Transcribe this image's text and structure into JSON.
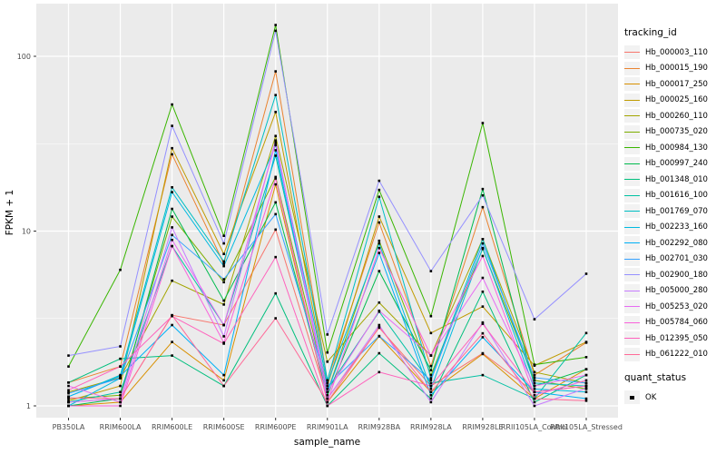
{
  "chart_data": {
    "type": "line",
    "title": "",
    "xlabel": "sample_name",
    "ylabel": "FPKM + 1",
    "y_scale": "log10",
    "y_ticks": [
      1,
      10,
      100
    ],
    "ylim": [
      1,
      160
    ],
    "grid": true,
    "legend_position": "right",
    "legend_title": "tracking_id",
    "legend2_title": "quant_status",
    "legend2_items": [
      {
        "label": "OK"
      }
    ],
    "point_shape": "square",
    "point_color": "#000000",
    "panel_bg": "#EBEBEB",
    "grid_color": "#FFFFFF",
    "axis_text_color": "#4D4D4D",
    "categories": [
      "PB350LA",
      "RRIM600LA",
      "RRIM600LE",
      "RRIM600SE",
      "RRIM600PE",
      "RRIM901LA",
      "RRIM928BA",
      "RRIM928LA",
      "RRIM928LE",
      "RRII105LA_Control",
      "RRII105LA_Stressed"
    ],
    "series": [
      {
        "name": "Hb_000003_110",
        "color": "#F8766D",
        "values": [
          1.05,
          1.1,
          3.3,
          2.9,
          10.2,
          1.1,
          2.8,
          1.3,
          2.0,
          1.2,
          1.3
        ]
      },
      {
        "name": "Hb_000015_190",
        "color": "#EA8331",
        "values": [
          1.36,
          1.68,
          27.5,
          6.5,
          82.0,
          1.4,
          11.2,
          1.69,
          13.7,
          1.5,
          2.3
        ]
      },
      {
        "name": "Hb_000017_250",
        "color": "#D89000",
        "values": [
          1.0,
          1.05,
          2.32,
          1.4,
          18.5,
          1.05,
          2.5,
          1.2,
          1.98,
          1.1,
          1.62
        ]
      },
      {
        "name": "Hb_000025_160",
        "color": "#C09B00",
        "values": [
          1.07,
          1.3,
          29.8,
          7.4,
          48.0,
          1.3,
          12.1,
          2.61,
          3.7,
          1.7,
          2.32
        ]
      },
      {
        "name": "Hb_000260_110",
        "color": "#A3A500",
        "values": [
          1.2,
          1.45,
          5.2,
          3.8,
          35.0,
          1.79,
          3.9,
          1.94,
          9.0,
          1.56,
          1.35
        ]
      },
      {
        "name": "Hb_000735_020",
        "color": "#7CAE00",
        "values": [
          1.1,
          1.15,
          12.1,
          5.1,
          20.4,
          1.2,
          8.8,
          1.5,
          7.9,
          1.4,
          1.25
        ]
      },
      {
        "name": "Hb_000984_130",
        "color": "#39B600",
        "values": [
          1.68,
          6.0,
          53.0,
          9.4,
          151,
          2.02,
          17.2,
          3.26,
          41.5,
          1.72,
          1.9
        ]
      },
      {
        "name": "Hb_000997_240",
        "color": "#00BB4E",
        "values": [
          1.0,
          1.1,
          13.4,
          4.0,
          14.6,
          1.15,
          5.9,
          1.6,
          17.4,
          1.3,
          1.62
        ]
      },
      {
        "name": "Hb_001348_010",
        "color": "#00BF7D",
        "values": [
          1.36,
          1.86,
          1.94,
          1.3,
          4.4,
          1.0,
          2.0,
          1.1,
          4.5,
          1.05,
          1.5
        ]
      },
      {
        "name": "Hb_001616_100",
        "color": "#00C1A3",
        "values": [
          1.05,
          1.2,
          8.2,
          2.9,
          27.0,
          1.25,
          3.46,
          1.35,
          1.5,
          1.1,
          2.61
        ]
      },
      {
        "name": "Hb_001769_070",
        "color": "#00BFC4",
        "values": [
          1.13,
          1.5,
          17.8,
          6.7,
          60.0,
          1.4,
          15.7,
          1.44,
          9.0,
          1.35,
          1.3
        ]
      },
      {
        "name": "Hb_002233_160",
        "color": "#00BAE0",
        "values": [
          1.0,
          1.44,
          16.7,
          6.3,
          31.0,
          1.35,
          8.5,
          1.25,
          8.0,
          1.25,
          1.2
        ]
      },
      {
        "name": "Hb_002292_080",
        "color": "#00B0F6",
        "values": [
          1.13,
          1.48,
          2.9,
          1.5,
          29.0,
          1.2,
          7.5,
          1.15,
          2.47,
          1.2,
          1.1
        ]
      },
      {
        "name": "Hb_002701_030",
        "color": "#35A2FF",
        "values": [
          1.18,
          1.44,
          9.5,
          5.3,
          12.5,
          1.3,
          2.51,
          1.4,
          8.5,
          1.45,
          1.35
        ]
      },
      {
        "name": "Hb_002900_180",
        "color": "#9590FF",
        "values": [
          1.94,
          2.19,
          40.0,
          8.5,
          140,
          2.56,
          19.4,
          5.9,
          16.0,
          3.13,
          5.7
        ]
      },
      {
        "name": "Hb_005000_280",
        "color": "#C77CFF",
        "values": [
          1.05,
          1.1,
          10.5,
          2.5,
          33.0,
          1.1,
          2.9,
          1.05,
          3.0,
          1.0,
          1.26
        ]
      },
      {
        "name": "Hb_005253_020",
        "color": "#E76BF3",
        "values": [
          1.3,
          1.05,
          8.9,
          2.9,
          32.0,
          1.2,
          3.5,
          1.94,
          5.4,
          1.3,
          1.5
        ]
      },
      {
        "name": "Hb_005784_060",
        "color": "#FA62DB",
        "values": [
          1.0,
          1.0,
          8.2,
          2.3,
          20.0,
          1.05,
          8.0,
          1.94,
          7.2,
          1.15,
          1.4
        ]
      },
      {
        "name": "Hb_012395_050",
        "color": "#FF62BC",
        "values": [
          1.23,
          1.68,
          3.26,
          2.27,
          7.1,
          1.0,
          1.56,
          1.3,
          2.95,
          1.2,
          1.3
        ]
      },
      {
        "name": "Hb_061222_010",
        "color": "#FF6A98",
        "values": [
          1.11,
          1.1,
          3.3,
          1.3,
          3.17,
          1.05,
          2.83,
          1.2,
          2.6,
          1.1,
          1.07
        ]
      }
    ]
  }
}
